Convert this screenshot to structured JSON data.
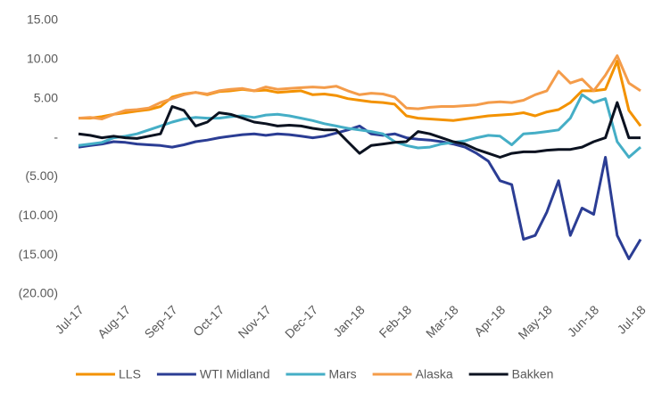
{
  "chart_data": {
    "type": "line",
    "categories": [
      "Jul-17",
      null,
      null,
      null,
      "Aug-17",
      null,
      null,
      null,
      "Sep-17",
      null,
      null,
      null,
      "Oct-17",
      null,
      null,
      null,
      "Nov-17",
      null,
      null,
      null,
      "Dec-17",
      null,
      null,
      null,
      "Jan-18",
      null,
      null,
      null,
      "Feb-18",
      null,
      null,
      null,
      "Mar-18",
      null,
      null,
      null,
      "Apr-18",
      null,
      null,
      null,
      "May-18",
      null,
      null,
      null,
      "Jun-18",
      null,
      null,
      null,
      "Jul-18"
    ],
    "series": [
      {
        "name": "LLS",
        "color": "#f39200",
        "values": [
          2.5,
          2.5,
          2.7,
          3.0,
          3.2,
          3.4,
          3.6,
          4.0,
          5.2,
          5.6,
          5.8,
          5.5,
          5.9,
          6.0,
          6.2,
          6.0,
          6.1,
          5.8,
          5.9,
          6.0,
          5.5,
          5.6,
          5.4,
          5.0,
          4.8,
          4.6,
          4.5,
          4.3,
          2.8,
          2.5,
          2.4,
          2.3,
          2.2,
          2.4,
          2.6,
          2.8,
          2.9,
          3.0,
          3.2,
          2.8,
          3.3,
          3.6,
          4.5,
          6.0,
          6.0,
          6.2,
          9.8,
          3.5,
          1.5
        ]
      },
      {
        "name": "WTI Midland",
        "color": "#2b3d94",
        "values": [
          -1.2,
          -1.0,
          -0.8,
          -0.5,
          -0.6,
          -0.8,
          -0.9,
          -1.0,
          -1.2,
          -0.9,
          -0.5,
          -0.3,
          0.0,
          0.2,
          0.4,
          0.5,
          0.3,
          0.5,
          0.4,
          0.2,
          0.0,
          0.2,
          0.6,
          1.0,
          1.5,
          0.5,
          0.3,
          0.5,
          0.0,
          -0.2,
          -0.3,
          -0.5,
          -0.8,
          -1.2,
          -2.0,
          -3.0,
          -5.5,
          -6.0,
          -13.0,
          -12.5,
          -9.5,
          -5.5,
          -12.5,
          -9.0,
          -9.8,
          -2.5,
          -12.5,
          -15.5,
          -13.0
        ]
      },
      {
        "name": "Mars",
        "color": "#45aec6",
        "values": [
          -1.0,
          -0.8,
          -0.6,
          0.0,
          0.2,
          0.5,
          1.0,
          1.5,
          2.0,
          2.4,
          2.6,
          2.5,
          2.5,
          2.7,
          2.8,
          2.6,
          2.9,
          3.0,
          2.8,
          2.5,
          2.2,
          1.8,
          1.5,
          1.2,
          1.0,
          0.8,
          0.5,
          -0.5,
          -1.0,
          -1.3,
          -1.2,
          -0.8,
          -0.6,
          -0.4,
          0.0,
          0.3,
          0.2,
          -0.9,
          0.5,
          0.6,
          0.8,
          1.0,
          2.5,
          5.5,
          4.5,
          5.0,
          -0.5,
          -2.5,
          -1.2
        ]
      },
      {
        "name": "Alaska",
        "color": "#f49c4a",
        "values": [
          2.5,
          2.6,
          2.4,
          3.0,
          3.5,
          3.6,
          3.8,
          4.5,
          5.0,
          5.5,
          5.8,
          5.6,
          6.0,
          6.2,
          6.3,
          6.0,
          6.5,
          6.2,
          6.3,
          6.4,
          6.5,
          6.4,
          6.6,
          6.0,
          5.5,
          5.7,
          5.6,
          5.2,
          3.8,
          3.7,
          3.9,
          4.0,
          4.0,
          4.1,
          4.2,
          4.5,
          4.6,
          4.5,
          4.8,
          5.5,
          6.0,
          8.5,
          7.0,
          7.5,
          6.0,
          8.0,
          10.5,
          7.0,
          6.0
        ]
      },
      {
        "name": "Bakken",
        "color": "#0b1220",
        "values": [
          0.5,
          0.3,
          0.0,
          0.2,
          0.0,
          -0.1,
          0.2,
          0.5,
          4.0,
          3.5,
          1.5,
          2.0,
          3.2,
          3.0,
          2.5,
          2.0,
          1.8,
          1.5,
          1.6,
          1.5,
          1.2,
          1.0,
          1.0,
          -0.5,
          -2.0,
          -1.0,
          -0.8,
          -0.6,
          -0.5,
          0.8,
          0.5,
          0.0,
          -0.5,
          -0.8,
          -1.5,
          -2.0,
          -2.5,
          -2.0,
          -1.8,
          -1.8,
          -1.6,
          -1.5,
          -1.5,
          -1.2,
          -0.5,
          0.0,
          4.5,
          0.0,
          0.0
        ]
      }
    ],
    "ylim": [
      -20,
      15
    ],
    "yticks": [
      {
        "value": 15,
        "label": "15.00"
      },
      {
        "value": 10,
        "label": "10.00"
      },
      {
        "value": 5,
        "label": "5.00"
      },
      {
        "value": 0,
        "label": "-"
      },
      {
        "value": -5,
        "label": "(5.00)"
      },
      {
        "value": -10,
        "label": "(10.00)"
      },
      {
        "value": -15,
        "label": "(15.00)"
      },
      {
        "value": -20,
        "label": "(20.00)"
      }
    ],
    "grid": false,
    "legend": "bottom"
  }
}
